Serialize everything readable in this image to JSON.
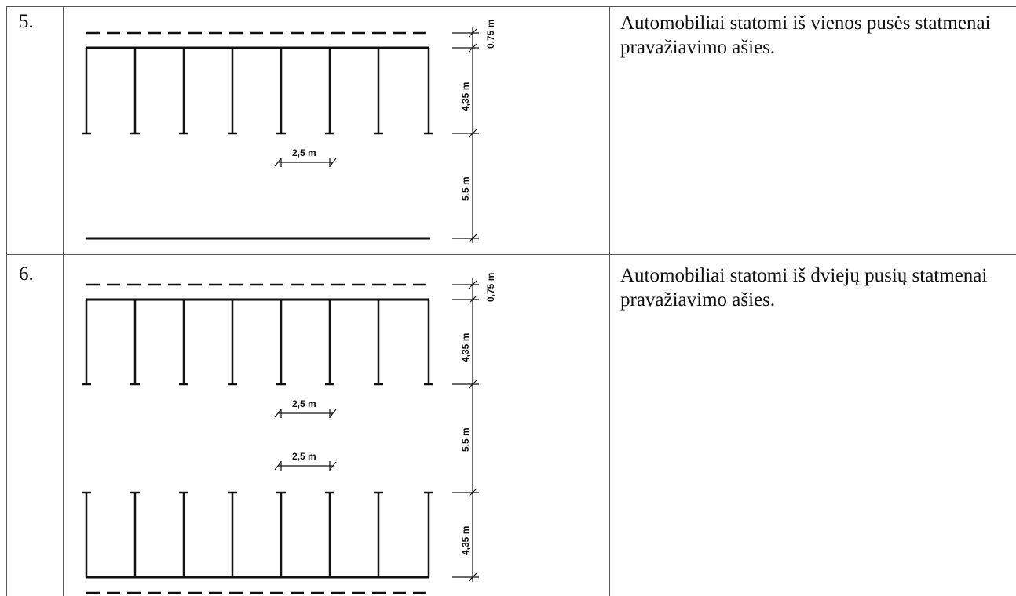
{
  "rows": [
    {
      "number": "5.",
      "description": "Automobiliai statomi iš vienos pusės statmenai pravažiavimo ašies.",
      "dimensions": {
        "buffer": "0,75 m",
        "stall_depth": "4,35 m",
        "aisle": "5,5 m",
        "stall_width": "2,5 m"
      }
    },
    {
      "number": "6.",
      "description": "Automobiliai statomi iš dviejų pusių statmenai pravažiavimo ašies.",
      "dimensions": {
        "buffer": "0,75 m",
        "stall_depth": "4,35 m",
        "aisle": "5,5 m",
        "stall_width": "2,5 m",
        "stall_width_2": "2,5 m",
        "stall_depth_2": "4,35 m"
      }
    }
  ]
}
